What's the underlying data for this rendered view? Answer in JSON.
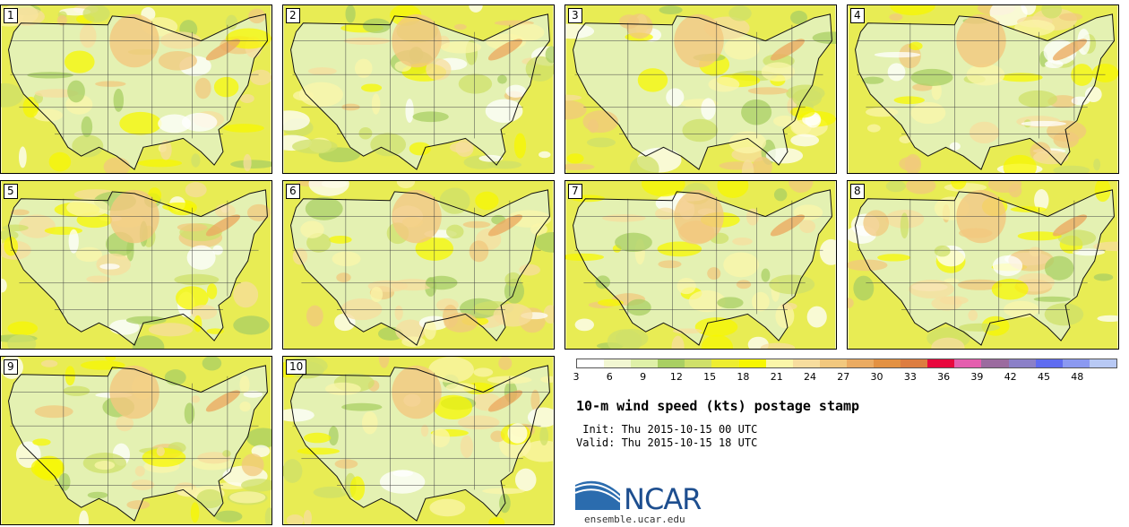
{
  "panels": [
    {
      "label": "1"
    },
    {
      "label": "2"
    },
    {
      "label": "3"
    },
    {
      "label": "4"
    },
    {
      "label": "5"
    },
    {
      "label": "6"
    },
    {
      "label": "7"
    },
    {
      "label": "8"
    },
    {
      "label": "9"
    },
    {
      "label": "10"
    }
  ],
  "colorbar": {
    "colors": [
      "#ffffff",
      "#f2f7d2",
      "#dff0a8",
      "#a9cf63",
      "#cfe06a",
      "#eeee30",
      "#f7f700",
      "#fbf6a9",
      "#f7dd9e",
      "#f2c87e",
      "#ebab62",
      "#e39142",
      "#dd7d40",
      "#e8083d",
      "#e45eae",
      "#9b6b9f",
      "#8b80c8",
      "#5f6cf0",
      "#8b99f1",
      "#b8c9f4"
    ],
    "ticks": [
      "3",
      "6",
      "9",
      "12",
      "15",
      "18",
      "21",
      "24",
      "27",
      "30",
      "33",
      "36",
      "39",
      "42",
      "45",
      "48"
    ]
  },
  "title": "10-m wind speed (kts) postage stamp",
  "init_line": " Init: Thu 2015-10-15 00 UTC",
  "valid_line": "Valid: Thu 2015-10-15 18 UTC",
  "logo_text": "NCAR",
  "website": "ensemble.ucar.edu"
}
